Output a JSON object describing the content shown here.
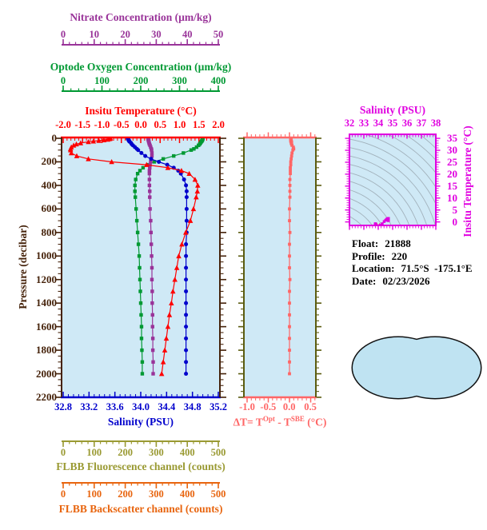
{
  "colors": {
    "background": "#ffffff",
    "panel_bg": "#cfe9f6",
    "nitrate": "#993399",
    "oxygen": "#009933",
    "temperature": "#ff0000",
    "pressure_axis": "#45220a",
    "salinity": "#0000cc",
    "delta_t": "#ff6666",
    "fluorescence": "#9a9a33",
    "backscatter": "#e8650f",
    "ts_magenta": "#e000e0",
    "olive_edge": "#5c5c10",
    "contour_gray": "#9aa8b2",
    "map_ocean": "#bfe3f2",
    "map_land": "#f5bcbc",
    "map_outline": "#111111"
  },
  "axes": {
    "nitrate": {
      "title": "Nitrate Concentration (µm/kg)",
      "ticks": [
        "0",
        "10",
        "20",
        "30",
        "40",
        "50"
      ]
    },
    "oxygen": {
      "title": "Optode Oxygen Concentration (µm/kg)",
      "ticks": [
        "0",
        "100",
        "200",
        "300",
        "400"
      ]
    },
    "temperature": {
      "title": "Insitu Temperature (°C)",
      "ticks": [
        "-2.0",
        "-1.5",
        "-1.0",
        "-0.5",
        "0.0",
        "0.5",
        "1.0",
        "1.5",
        "2.0"
      ]
    },
    "pressure": {
      "title": "Pressure (decibar)",
      "ticks": [
        "0",
        "200",
        "400",
        "600",
        "800",
        "1000",
        "1200",
        "1400",
        "1600",
        "1800",
        "2000",
        "2200"
      ]
    },
    "salinity": {
      "title": "Salinity (PSU)",
      "ticks": [
        "32.8",
        "33.2",
        "33.6",
        "34.0",
        "34.4",
        "34.8",
        "35.2"
      ]
    },
    "delta_t": {
      "ticks": [
        "-1.0",
        "-0.5",
        "0.0",
        "0.5"
      ],
      "label_parts": {
        "pre": "ΔT= T",
        "sup1": "Opt",
        "mid": " - T",
        "sup2": "SBE",
        "post": " (°C)"
      }
    },
    "fluorescence": {
      "title": "FLBB Fluorescence channel (counts)",
      "ticks": [
        "0",
        "100",
        "200",
        "300",
        "400",
        "500"
      ]
    },
    "backscatter": {
      "title": "FLBB Backscatter channel (counts)",
      "ticks": [
        "0",
        "100",
        "200",
        "300",
        "400",
        "500"
      ]
    },
    "ts": {
      "title": "Salinity (PSU)",
      "xticks": [
        "32",
        "33",
        "34",
        "35",
        "36",
        "37",
        "38"
      ],
      "yticks": [
        "35",
        "30",
        "25",
        "20",
        "15",
        "10",
        "5",
        "0"
      ],
      "ylabel": "Insitu Temperature (°C)"
    }
  },
  "info": {
    "float_label": "Float:",
    "float_value": "21888",
    "profile_label": "Profile:",
    "profile_value": "220",
    "location_label": "Location:",
    "location_value": "71.5°S  -175.1°E",
    "date_label": "Date:",
    "date_value": "02/23/2026"
  },
  "map": {
    "style": "world-map-pacific-centered",
    "land_color": "#f5bcbc",
    "ocean_color": "#bfe3f2"
  },
  "chart_data": {
    "type": "line",
    "orientation": "vertical-profile",
    "pressure_range": [
      0,
      2200
    ],
    "pressure_db": [
      0,
      5,
      10,
      15,
      20,
      25,
      30,
      40,
      50,
      60,
      75,
      90,
      100,
      125,
      150,
      175,
      200,
      225,
      250,
      275,
      300,
      350,
      400,
      450,
      500,
      600,
      700,
      800,
      900,
      1000,
      1100,
      1200,
      1300,
      1400,
      1500,
      1600,
      1700,
      1800,
      1900,
      2000
    ],
    "series": [
      {
        "name": "insitu_temperature",
        "units": "°C",
        "axis_range": [
          -2.0,
          2.0
        ],
        "color": "#ff0000",
        "marker": "triangle",
        "values": [
          -0.78,
          -0.8,
          -0.85,
          -0.95,
          -1.08,
          -1.22,
          -1.35,
          -1.55,
          -1.66,
          -1.73,
          -1.79,
          -1.81,
          -1.81,
          -1.79,
          -1.65,
          -1.35,
          -0.75,
          0.15,
          0.7,
          1.05,
          1.25,
          1.4,
          1.47,
          1.46,
          1.43,
          1.36,
          1.28,
          1.16,
          1.06,
          0.98,
          0.93,
          0.88,
          0.83,
          0.79,
          0.74,
          0.7,
          0.66,
          0.62,
          0.58,
          0.54
        ]
      },
      {
        "name": "salinity",
        "units": "PSU",
        "axis_range": [
          32.8,
          35.2
        ],
        "color": "#0000cc",
        "marker": "circle",
        "values": [
          33.8,
          33.8,
          33.81,
          33.81,
          33.82,
          33.82,
          33.83,
          33.85,
          33.86,
          33.88,
          33.91,
          33.94,
          33.96,
          34.01,
          34.07,
          34.16,
          34.28,
          34.41,
          34.51,
          34.58,
          34.62,
          34.67,
          34.7,
          34.71,
          34.71,
          34.71,
          34.71,
          34.71,
          34.7,
          34.7,
          34.7,
          34.7,
          34.7,
          34.7,
          34.7,
          34.7,
          34.7,
          34.7,
          34.7,
          34.7
        ]
      },
      {
        "name": "optode_oxygen",
        "units": "µm/kg",
        "axis_range": [
          0,
          400
        ],
        "color": "#009933",
        "marker": "square",
        "values": [
          360,
          360,
          359,
          359,
          358,
          357,
          356,
          354,
          352,
          349,
          344,
          337,
          330,
          310,
          285,
          258,
          235,
          218,
          206,
          198,
          192,
          187,
          185,
          185,
          186,
          188,
          190,
          192,
          194,
          196,
          197,
          198,
          199,
          200,
          201,
          202,
          202,
          203,
          204,
          204
        ]
      },
      {
        "name": "nitrate",
        "units": "µm/kg",
        "axis_range": [
          0,
          50
        ],
        "color": "#993399",
        "marker": "square",
        "values": [
          27.4,
          27.4,
          27.4,
          27.5,
          27.5,
          27.6,
          27.6,
          27.7,
          27.8,
          28.0,
          28.2,
          28.4,
          28.5,
          28.6,
          28.6,
          28.4,
          28.2,
          28.0,
          27.9,
          27.8,
          27.8,
          27.8,
          27.8,
          27.9,
          27.9,
          28.0,
          28.2,
          28.3,
          28.4,
          28.5,
          28.6,
          28.6,
          28.7,
          28.7,
          28.8,
          28.8,
          28.9,
          28.9,
          29.0,
          29.0
        ]
      },
      {
        "name": "delta_t",
        "units": "°C",
        "axis_range": [
          -1.0,
          0.5
        ],
        "panel": "delta",
        "color": "#ff6666",
        "marker": "square",
        "values": [
          0.03,
          0.03,
          0.04,
          0.03,
          0.04,
          0.03,
          0.05,
          0.04,
          0.05,
          0.06,
          0.09,
          0.1,
          0.08,
          0.06,
          0.05,
          0.04,
          0.03,
          0.03,
          0.02,
          0.02,
          0.02,
          0.01,
          0.01,
          0.01,
          0.01,
          0.0,
          0.0,
          0.01,
          0.0,
          0.0,
          0.0,
          0.01,
          0.0,
          0.0,
          0.0,
          0.0,
          0.0,
          0.0,
          0.0,
          0.0
        ]
      }
    ],
    "ts_diagram": {
      "x_range": [
        32,
        38
      ],
      "y_range": [
        0,
        35
      ],
      "points_from": "salinity vs insitu_temperature",
      "background": "density-style contour curves"
    }
  }
}
